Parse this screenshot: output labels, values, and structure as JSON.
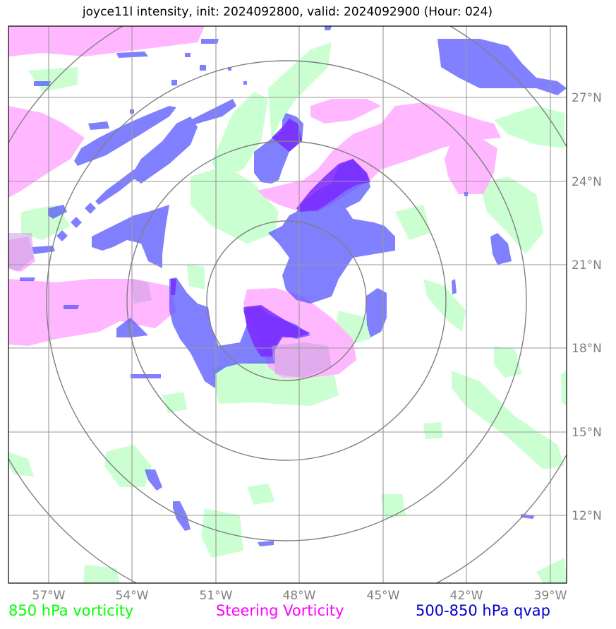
{
  "title": "joyce11l intensity, init: 2024092800, valid: 2024092900 (Hour: 024)",
  "colors": {
    "vorticity_850": "#c8ffd0",
    "steering_vorticity": "#ffb4ff",
    "qvap": "#5050ff",
    "qvap_dense": "#7a2aff",
    "grid": "#999999",
    "rings": "#808080",
    "legend_vort": "#00ff00",
    "legend_steer": "#ff00ff",
    "legend_qvap": "#0000cc"
  },
  "lat_labels": [
    "27°N",
    "24°N",
    "21°N",
    "18°N",
    "15°N",
    "12°N"
  ],
  "lon_labels": [
    "57°W",
    "54°W",
    "51°W",
    "48°W",
    "45°W",
    "42°W",
    "39°W"
  ],
  "legend": {
    "vort": "850 hPa vorticity",
    "steer": "Steering Vorticity",
    "qvap": "500-850 hPa qvap"
  }
}
